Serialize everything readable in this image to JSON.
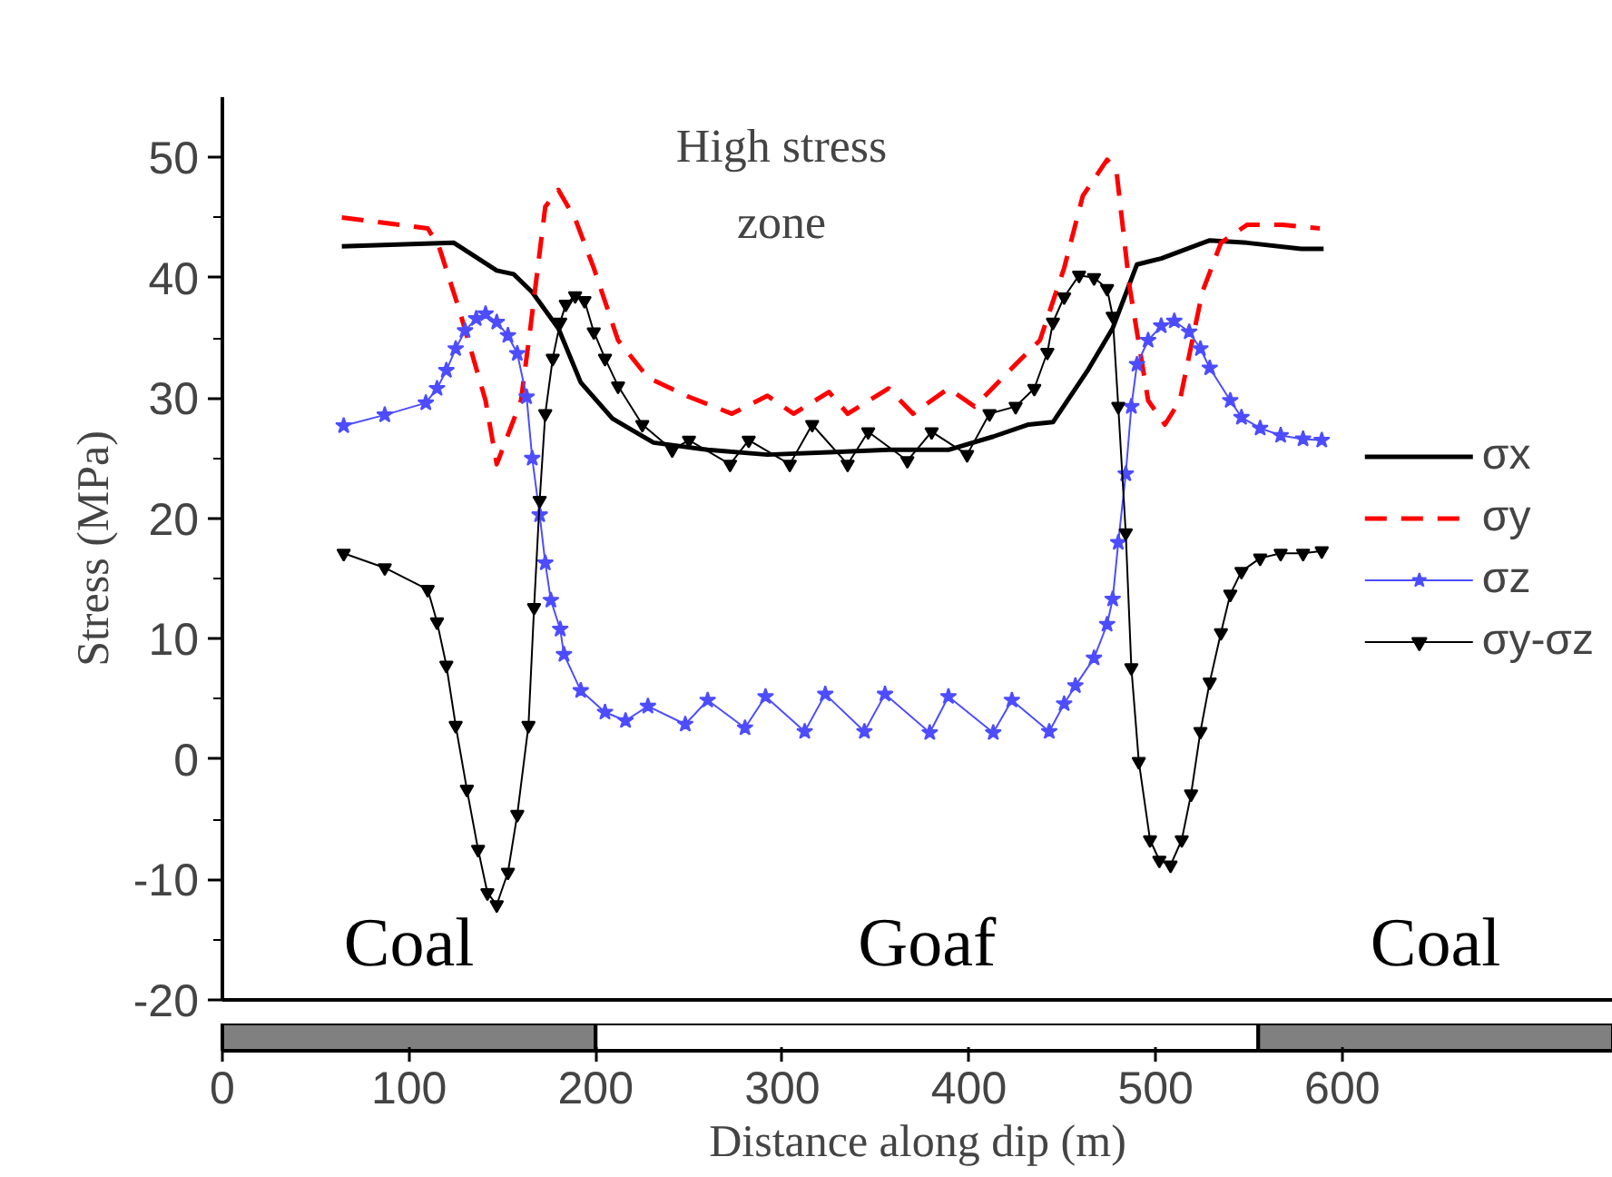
{
  "chart_data": [
    {
      "type": "line",
      "ylabel": "Stress (MPa)",
      "xlim": [
        0,
        745
      ],
      "ylim": [
        -20,
        55
      ],
      "xticks": [
        0,
        100,
        200,
        300,
        400,
        500,
        600
      ],
      "yticks": [
        -20,
        -10,
        0,
        10,
        20,
        30,
        40,
        50
      ],
      "tick_labels": "y",
      "grid": false,
      "legend": "right",
      "series": [
        {
          "name": "σx",
          "color": "#000000",
          "line_style": "solid",
          "marker": "none",
          "x": [
            64,
            124,
            147,
            156,
            166,
            180,
            192,
            209,
            221,
            231,
            260,
            292,
            325,
            357,
            389,
            413,
            432,
            445,
            464,
            477,
            490,
            503,
            529,
            549,
            578,
            590
          ],
          "values": [
            42.6,
            42.9,
            40.6,
            40.3,
            38.8,
            35.8,
            31.3,
            28.3,
            27.2,
            26.3,
            25.7,
            25.3,
            25.5,
            25.7,
            25.7,
            26.8,
            27.8,
            28.0,
            32.4,
            35.8,
            41.1,
            41.6,
            43.1,
            42.9,
            42.4,
            42.4
          ]
        },
        {
          "name": "σy",
          "color": "#ff0000",
          "line_style": "dashed",
          "marker": "none",
          "x": [
            64,
            110,
            116,
            127,
            141,
            147,
            160,
            165,
            173,
            180,
            189,
            199,
            212,
            228,
            250,
            273,
            292,
            306,
            325,
            335,
            357,
            370,
            389,
            403,
            425,
            438,
            451,
            461,
            474,
            479,
            486,
            496,
            505,
            513,
            525,
            535,
            549,
            568,
            588
          ],
          "values": [
            45.0,
            44.1,
            42.6,
            37.3,
            29.8,
            24.5,
            29.8,
            35.8,
            45.9,
            47.3,
            44.9,
            40.8,
            34.8,
            31.7,
            30.1,
            28.7,
            30.2,
            28.7,
            30.5,
            28.7,
            30.8,
            28.7,
            30.8,
            29.3,
            32.8,
            34.8,
            40.8,
            46.8,
            49.8,
            48.9,
            39.3,
            29.8,
            27.8,
            29.8,
            38.8,
            42.9,
            44.4,
            44.4,
            44.1
          ]
        },
        {
          "name": "σz",
          "color": "#4d4dff",
          "line_style": "solid",
          "marker": "star",
          "x": [
            65,
            87,
            109,
            115,
            120,
            125,
            130,
            136,
            141,
            147,
            153,
            158,
            163,
            166,
            170,
            173,
            176,
            181,
            183,
            192,
            205,
            216,
            228,
            248,
            260,
            280,
            291,
            312,
            323,
            344,
            355,
            379,
            389,
            413,
            423,
            443,
            451,
            457,
            467,
            474,
            477,
            480,
            484,
            487,
            490,
            496,
            503,
            510,
            518,
            524,
            529,
            540,
            546,
            556,
            567,
            579,
            589
          ],
          "values": [
            27.7,
            28.6,
            29.6,
            30.8,
            32.3,
            34.1,
            35.6,
            36.6,
            37.0,
            36.3,
            35.2,
            33.7,
            30.1,
            25.0,
            20.3,
            16.3,
            13.2,
            10.8,
            8.7,
            5.7,
            3.9,
            3.2,
            4.4,
            2.9,
            4.9,
            2.6,
            5.2,
            2.3,
            5.4,
            2.3,
            5.4,
            2.2,
            5.2,
            2.2,
            4.9,
            2.3,
            4.6,
            6.1,
            8.4,
            11.2,
            13.3,
            18.0,
            23.7,
            29.3,
            32.8,
            34.8,
            36.0,
            36.4,
            35.5,
            34.1,
            32.5,
            29.8,
            28.4,
            27.5,
            26.9,
            26.6,
            26.5
          ]
        },
        {
          "name": "σy-σz",
          "color": "#000000",
          "line_style": "solid",
          "marker": "triangle",
          "x": [
            65,
            87,
            110,
            115,
            120,
            125,
            131,
            137,
            142,
            147,
            153,
            158,
            164,
            167,
            170,
            173,
            177,
            181,
            184,
            189,
            194,
            199,
            205,
            212,
            225,
            241,
            250,
            272,
            282,
            304,
            316,
            335,
            346,
            367,
            380,
            399,
            411,
            425,
            435,
            442,
            445,
            451,
            459,
            467,
            474,
            477,
            480,
            484,
            487,
            491,
            497,
            502,
            508,
            514,
            519,
            524,
            529,
            535,
            540,
            546,
            556,
            567,
            579,
            589
          ],
          "values": [
            17.1,
            15.9,
            14.1,
            11.4,
            7.8,
            2.8,
            -2.5,
            -7.5,
            -11.1,
            -12.1,
            -9.4,
            -4.6,
            2.8,
            12.6,
            21.5,
            28.7,
            33.3,
            36.3,
            37.8,
            38.5,
            38.1,
            35.5,
            33.3,
            31.0,
            27.8,
            25.7,
            26.5,
            24.5,
            26.5,
            24.5,
            27.8,
            24.5,
            27.2,
            24.8,
            27.2,
            25.3,
            28.7,
            29.3,
            30.8,
            33.8,
            36.3,
            38.4,
            40.2,
            40.0,
            39.1,
            36.8,
            29.3,
            18.8,
            7.6,
            -0.2,
            -6.7,
            -8.4,
            -8.8,
            -6.7,
            -2.9,
            2.3,
            6.4,
            10.5,
            13.7,
            15.6,
            16.7,
            17.1,
            17.1,
            17.3
          ]
        }
      ],
      "annotations": [
        "High stress\nzone"
      ]
    },
    {
      "type": "bar",
      "orientation": "horizontal",
      "stacked": true,
      "categories": [
        null
      ],
      "xlabel": "Distance along dip (m)",
      "xlim": [
        0,
        745
      ],
      "xticks": [
        0,
        100,
        200,
        300,
        400,
        500,
        600
      ],
      "tick_labels": "x",
      "series": [
        {
          "name": "Coal",
          "color": "#808080",
          "values": [
            200
          ]
        },
        {
          "name": "Goaf",
          "color": "#ffffff",
          "values": [
            355
          ]
        },
        {
          "name": "Coal",
          "color": "#808080",
          "values": [
            190
          ]
        }
      ]
    }
  ]
}
